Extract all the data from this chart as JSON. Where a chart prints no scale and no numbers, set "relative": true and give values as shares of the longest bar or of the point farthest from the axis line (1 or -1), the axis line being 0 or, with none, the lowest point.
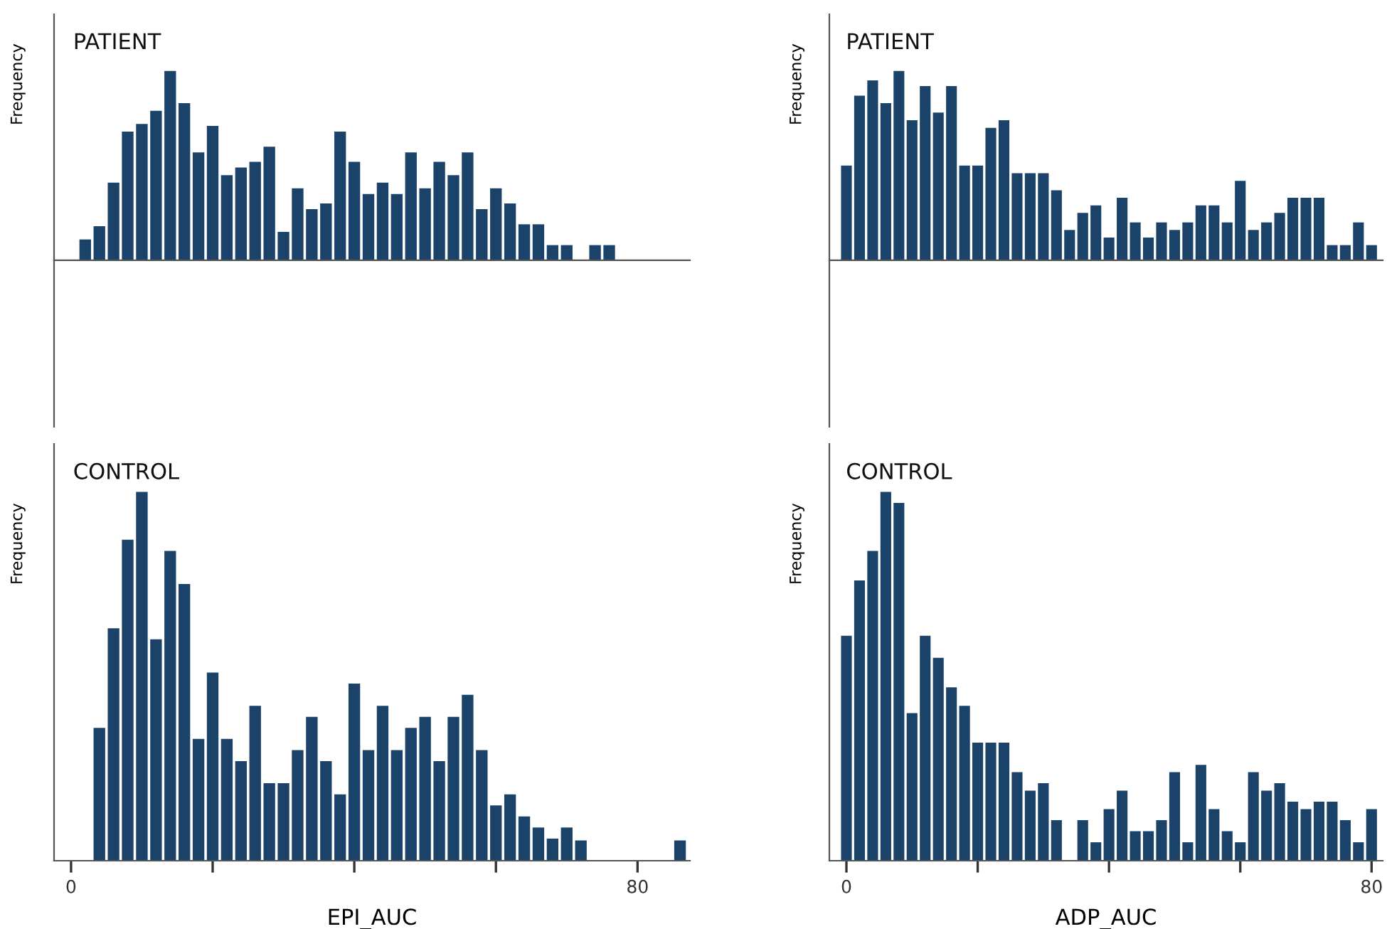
{
  "chart_data": [
    {
      "type": "bar",
      "relative": true,
      "title": "PATIENT",
      "ylabel": "Frequency",
      "color": "#1b4369",
      "tick_labels": false,
      "xlim": [
        -2.4,
        87.4
      ],
      "x": [
        2,
        4,
        6,
        8,
        10,
        12,
        14,
        16,
        18,
        20,
        22,
        24,
        26,
        28,
        30,
        32,
        34,
        36,
        38,
        40,
        42,
        44,
        46,
        48,
        50,
        52,
        54,
        56,
        58,
        60,
        62,
        64,
        66,
        68,
        70,
        74,
        76
      ],
      "values": [
        0.11,
        0.18,
        0.41,
        0.68,
        0.72,
        0.79,
        1.0,
        0.83,
        0.57,
        0.71,
        0.45,
        0.49,
        0.52,
        0.6,
        0.15,
        0.38,
        0.27,
        0.3,
        0.68,
        0.52,
        0.35,
        0.41,
        0.35,
        0.57,
        0.38,
        0.52,
        0.45,
        0.57,
        0.27,
        0.38,
        0.3,
        0.19,
        0.19,
        0.08,
        0.08,
        0.08,
        0.08
      ]
    },
    {
      "type": "bar",
      "relative": true,
      "title": "CONTROL",
      "ylabel": "Frequency",
      "xlabel": "EPI_AUC",
      "color": "#1b4369",
      "xlim": [
        -2.4,
        87.4
      ],
      "xticks": [
        0,
        {
          "value": 20,
          "label": null
        },
        {
          "value": 40,
          "label": null
        },
        {
          "value": 60,
          "label": null
        },
        80
      ],
      "tick_labels": "x",
      "x": [
        4,
        6,
        8,
        10,
        12,
        14,
        16,
        18,
        20,
        22,
        24,
        26,
        28,
        30,
        32,
        34,
        36,
        38,
        40,
        42,
        44,
        46,
        48,
        50,
        52,
        54,
        56,
        58,
        60,
        62,
        64,
        66,
        68,
        70,
        72,
        86
      ],
      "values": [
        0.36,
        0.63,
        0.87,
        1.0,
        0.6,
        0.84,
        0.75,
        0.33,
        0.51,
        0.33,
        0.27,
        0.42,
        0.21,
        0.21,
        0.3,
        0.39,
        0.27,
        0.18,
        0.48,
        0.3,
        0.42,
        0.3,
        0.36,
        0.39,
        0.27,
        0.39,
        0.45,
        0.3,
        0.15,
        0.18,
        0.12,
        0.09,
        0.06,
        0.09,
        0.055,
        0.055
      ]
    },
    {
      "type": "bar",
      "relative": true,
      "title": "PATIENT",
      "ylabel": "Frequency",
      "color": "#1b4369",
      "tick_labels": false,
      "xlim": [
        -2.6,
        81.7
      ],
      "x": [
        0,
        2,
        4,
        6,
        8,
        10,
        12,
        14,
        16,
        18,
        20,
        22,
        24,
        26,
        28,
        30,
        32,
        34,
        36,
        38,
        40,
        42,
        44,
        46,
        48,
        50,
        52,
        54,
        56,
        58,
        60,
        62,
        64,
        66,
        68,
        70,
        72,
        74,
        76,
        78,
        80
      ],
      "values": [
        0.5,
        0.87,
        0.95,
        0.83,
        1.0,
        0.74,
        0.92,
        0.78,
        0.92,
        0.5,
        0.5,
        0.7,
        0.74,
        0.46,
        0.46,
        0.46,
        0.37,
        0.16,
        0.25,
        0.29,
        0.12,
        0.33,
        0.2,
        0.12,
        0.2,
        0.16,
        0.2,
        0.29,
        0.29,
        0.2,
        0.42,
        0.16,
        0.2,
        0.25,
        0.33,
        0.33,
        0.33,
        0.08,
        0.08,
        0.2,
        0.08
      ]
    },
    {
      "type": "bar",
      "relative": true,
      "title": "CONTROL",
      "ylabel": "Frequency",
      "xlabel": "ADP_AUC",
      "color": "#1b4369",
      "xlim": [
        -2.6,
        81.7
      ],
      "xticks": [
        0,
        {
          "value": 20,
          "label": null
        },
        {
          "value": 40,
          "label": null
        },
        {
          "value": 60,
          "label": null
        },
        80
      ],
      "tick_labels": "x",
      "x": [
        0,
        2,
        4,
        6,
        8,
        10,
        12,
        14,
        16,
        18,
        20,
        22,
        24,
        26,
        28,
        30,
        32,
        36,
        38,
        40,
        42,
        44,
        46,
        48,
        50,
        52,
        54,
        56,
        58,
        60,
        62,
        64,
        66,
        68,
        70,
        72,
        74,
        76,
        78,
        80
      ],
      "values": [
        0.61,
        0.76,
        0.84,
        1.0,
        0.97,
        0.4,
        0.61,
        0.55,
        0.47,
        0.42,
        0.32,
        0.32,
        0.32,
        0.24,
        0.19,
        0.21,
        0.11,
        0.11,
        0.05,
        0.14,
        0.19,
        0.08,
        0.08,
        0.11,
        0.24,
        0.05,
        0.26,
        0.14,
        0.08,
        0.05,
        0.24,
        0.19,
        0.21,
        0.16,
        0.14,
        0.16,
        0.16,
        0.11,
        0.05,
        0.14
      ]
    }
  ]
}
